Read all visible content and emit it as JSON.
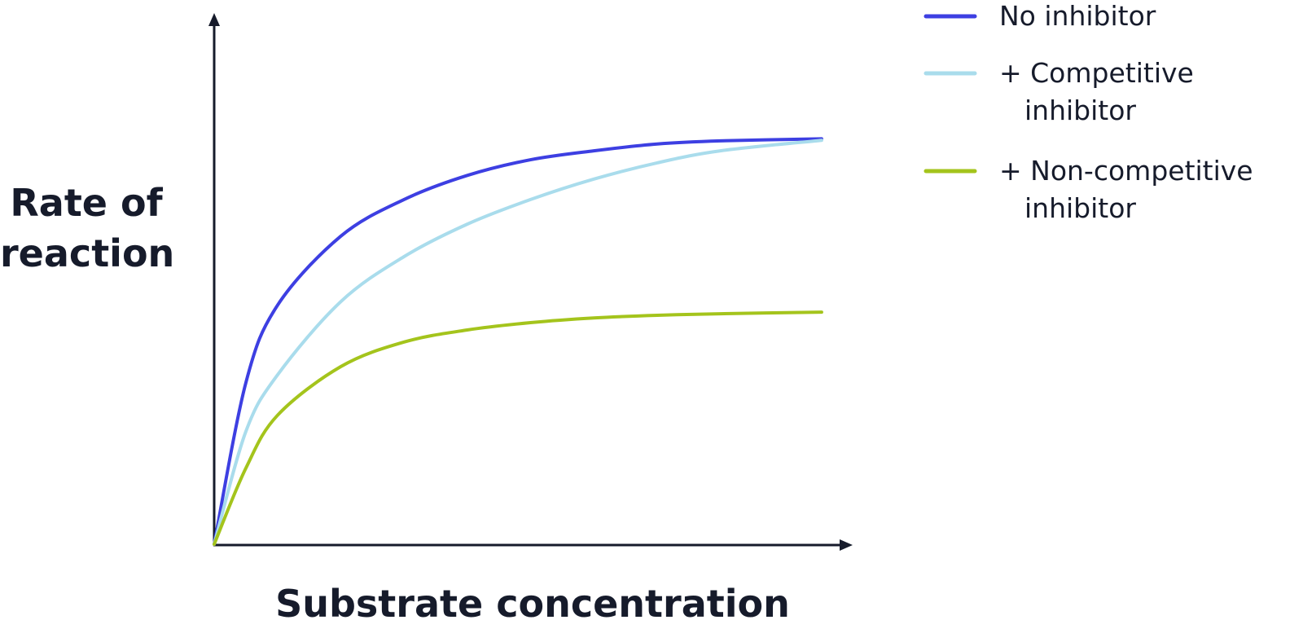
{
  "chart_data": {
    "type": "line",
    "x_label": "Substrate concentration",
    "y_label": "Rate of reaction",
    "x": [
      0,
      5,
      10,
      20,
      30,
      40,
      50,
      60,
      70,
      80,
      96
    ],
    "xlim": [
      0,
      100
    ],
    "ylim": [
      0,
      100
    ],
    "series": [
      {
        "name": "No inhibitor",
        "color": "#3d3fe2",
        "values": [
          0,
          30.8,
          45.6,
          58.8,
          65.8,
          70.4,
          73.4,
          75.1,
          76.4,
          77.0,
          77.4
        ]
      },
      {
        "name": "+ Competitive inhibitor",
        "color": "#a9dcec",
        "values": [
          0,
          21.5,
          32.3,
          46.3,
          54.9,
          61.1,
          65.8,
          69.7,
          72.8,
          75.1,
          77.1
        ]
      },
      {
        "name": "+ Non-competitive inhibitor",
        "color": "#a4c41c",
        "values": [
          0,
          14.5,
          24.6,
          33.9,
          38.6,
          40.9,
          42.3,
          43.2,
          43.7,
          44.0,
          44.3
        ]
      }
    ]
  }
}
